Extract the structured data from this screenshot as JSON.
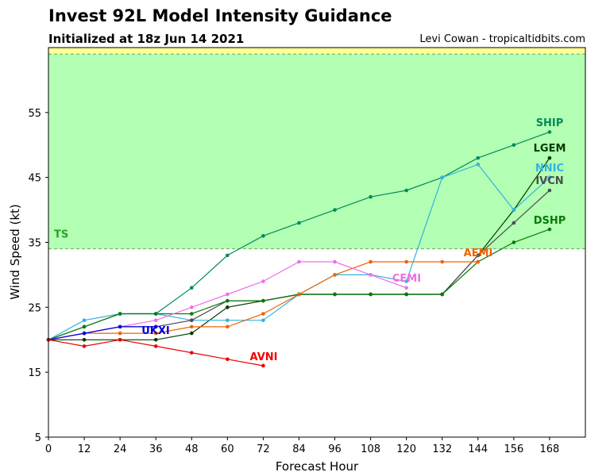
{
  "header": {
    "title": "Invest 92L Model Intensity Guidance",
    "subtitle": "Initialized at 18z Jun 14 2021",
    "credit": "Levi Cowan - tropicaltidbits.com"
  },
  "chart_data": {
    "type": "line",
    "xlabel": "Forecast Hour",
    "ylabel": "Wind Speed (kt)",
    "xlim": [
      0,
      180
    ],
    "ylim": [
      5,
      65
    ],
    "xticks": [
      0,
      12,
      24,
      36,
      48,
      60,
      72,
      84,
      96,
      108,
      120,
      132,
      144,
      156,
      168
    ],
    "yticks": [
      5,
      15,
      25,
      35,
      45,
      55
    ],
    "bands": [
      {
        "from": 34,
        "to": 64,
        "color": "#b3ffb3",
        "label": "TS",
        "label_color": "#2ca02c"
      },
      {
        "from": 64,
        "to": 65,
        "color": "#ffff99",
        "label": "",
        "label_color": "#999900"
      }
    ],
    "series": [
      {
        "name": "SHIP",
        "color": "#008c5a",
        "x": [
          0,
          12,
          24,
          36,
          48,
          60,
          72,
          84,
          96,
          108,
          120,
          132,
          144,
          156,
          168
        ],
        "y": [
          20,
          22,
          24,
          24,
          28,
          33,
          36,
          38,
          40,
          42,
          43,
          45,
          48,
          50,
          52
        ]
      },
      {
        "name": "LGEM",
        "color": "#003a00",
        "x": [
          0,
          12,
          24,
          36,
          48,
          60,
          72,
          84,
          96,
          108,
          120,
          132,
          144,
          156,
          168
        ],
        "y": [
          20,
          20,
          20,
          20,
          21,
          25,
          26,
          27,
          27,
          27,
          27,
          27,
          33,
          40,
          48
        ]
      },
      {
        "name": "NNIC",
        "color": "#35b3de",
        "x": [
          0,
          12,
          24,
          36,
          48,
          60,
          72,
          84,
          96,
          108,
          120,
          132,
          144,
          156,
          168
        ],
        "y": [
          20,
          23,
          24,
          24,
          23,
          23,
          23,
          27,
          30,
          30,
          29,
          45,
          47,
          40,
          45
        ]
      },
      {
        "name": "IVCN",
        "color": "#4d4d4d",
        "x": [
          0,
          12,
          24,
          36,
          48,
          60,
          72,
          84,
          96,
          108,
          120,
          132,
          144,
          156,
          168
        ],
        "y": [
          20,
          21,
          22,
          22,
          23,
          26,
          26,
          27,
          27,
          27,
          27,
          27,
          33,
          38,
          43
        ]
      },
      {
        "name": "DSHP",
        "color": "#0a7a0a",
        "x": [
          0,
          12,
          24,
          36,
          48,
          60,
          72,
          84,
          96,
          108,
          120,
          132,
          144,
          156,
          168
        ],
        "y": [
          20,
          22,
          24,
          24,
          24,
          26,
          26,
          27,
          27,
          27,
          27,
          27,
          32,
          35,
          37
        ]
      },
      {
        "name": "AEMI",
        "color": "#f06400",
        "x": [
          0,
          12,
          24,
          36,
          48,
          60,
          72,
          84,
          96,
          108,
          120,
          132,
          144
        ],
        "y": [
          20,
          21,
          21,
          21,
          22,
          22,
          24,
          27,
          30,
          32,
          32,
          32,
          32
        ]
      },
      {
        "name": "CEMI",
        "color": "#f070e6",
        "x": [
          0,
          12,
          24,
          36,
          48,
          60,
          72,
          84,
          96,
          108,
          120
        ],
        "y": [
          20,
          21,
          22,
          23,
          25,
          27,
          29,
          32,
          32,
          30,
          28
        ]
      },
      {
        "name": "UKXI",
        "color": "#0000dd",
        "x": [
          0,
          12,
          24,
          36
        ],
        "y": [
          20,
          21,
          22,
          22
        ]
      },
      {
        "name": "AVNI",
        "color": "#ee0000",
        "x": [
          0,
          12,
          24,
          36,
          48,
          60,
          72
        ],
        "y": [
          20,
          19,
          20,
          19,
          18,
          17,
          16
        ]
      }
    ]
  }
}
